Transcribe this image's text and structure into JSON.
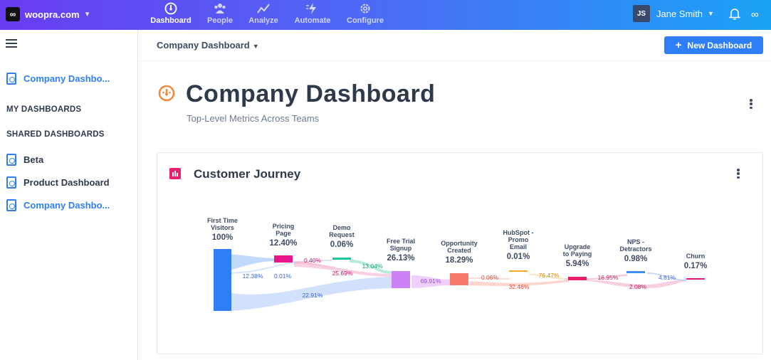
{
  "topbar": {
    "brand": "woopra.com",
    "nav": [
      {
        "label": "Dashboard",
        "icon": "dashboard-gauge-icon",
        "active": true
      },
      {
        "label": "People",
        "icon": "people-icon",
        "active": false
      },
      {
        "label": "Analyze",
        "icon": "analyze-trend-icon",
        "active": false
      },
      {
        "label": "Automate",
        "icon": "automate-bolt-icon",
        "active": false
      },
      {
        "label": "Configure",
        "icon": "configure-gear-icon",
        "active": false
      }
    ],
    "user": {
      "initials": "JS",
      "name": "Jane Smith"
    }
  },
  "sidebar": {
    "current_item": "Company Dashbo...",
    "my_dashboards_heading": "MY DASHBOARDS",
    "shared_dashboards_heading": "SHARED DASHBOARDS",
    "shared_items": [
      {
        "label": "Beta",
        "current": false
      },
      {
        "label": "Product Dashboard",
        "current": false
      },
      {
        "label": "Company Dashbo...",
        "current": true
      }
    ]
  },
  "header": {
    "dashboard_select": "Company Dashboard",
    "new_button": "New Dashboard"
  },
  "page": {
    "title": "Company Dashboard",
    "subtitle": "Top-Level Metrics Across Teams"
  },
  "colors": {
    "primary": "#2d7ef7",
    "accent_pink": "#e8216d",
    "title_icon": "#f08a3c"
  },
  "card": {
    "title": "Customer Journey",
    "chart_data": {
      "type": "sankey",
      "stages": [
        {
          "name_lines": [
            "First Time",
            "Visitors"
          ],
          "value": "100%",
          "color": "#2d7ef7"
        },
        {
          "name_lines": [
            "Pricing",
            "Page"
          ],
          "value": "12.40%",
          "color": "#e8168c"
        },
        {
          "name_lines": [
            "Demo",
            "Request"
          ],
          "value": "0.06%",
          "color": "#1ec29b"
        },
        {
          "name_lines": [
            "Free Trial",
            "Signup"
          ],
          "value": "26.13%",
          "color": "#cc82f5"
        },
        {
          "name_lines": [
            "Opportunity",
            "Created"
          ],
          "value": "18.29%",
          "color": "#f77b6b"
        },
        {
          "name_lines": [
            "HubSpot -",
            "Promo",
            "Email"
          ],
          "value": "0.01%",
          "color": "#f5a623"
        },
        {
          "name_lines": [
            "Upgrade",
            "to Paying"
          ],
          "value": "5.94%",
          "color": "#e8216d"
        },
        {
          "name_lines": [
            "NPS -",
            "Detractors"
          ],
          "value": "0.98%",
          "color": "#3b8ef5"
        },
        {
          "name_lines": [
            "Churn"
          ],
          "value": "0.17%",
          "color": "#e8168c"
        }
      ],
      "flow_labels": [
        {
          "text": "12.38%",
          "color": "#3b66c9"
        },
        {
          "text": "0.01%",
          "color": "#3b66c9"
        },
        {
          "text": "22.91%",
          "color": "#3b66c9"
        },
        {
          "text": "0.40%",
          "color": "#c0185f"
        },
        {
          "text": "25.69%",
          "color": "#c0185f"
        },
        {
          "text": "13.04%",
          "color": "#16946f"
        },
        {
          "text": "69.91%",
          "color": "#9a4bcf"
        },
        {
          "text": "0.06%",
          "color": "#d9452f"
        },
        {
          "text": "32.46%",
          "color": "#d9452f"
        },
        {
          "text": "76.47%",
          "color": "#c98412"
        },
        {
          "text": "16.95%",
          "color": "#c0185f"
        },
        {
          "text": "2.08%",
          "color": "#c0185f"
        },
        {
          "text": "4.81%",
          "color": "#3b66c9"
        }
      ]
    }
  }
}
